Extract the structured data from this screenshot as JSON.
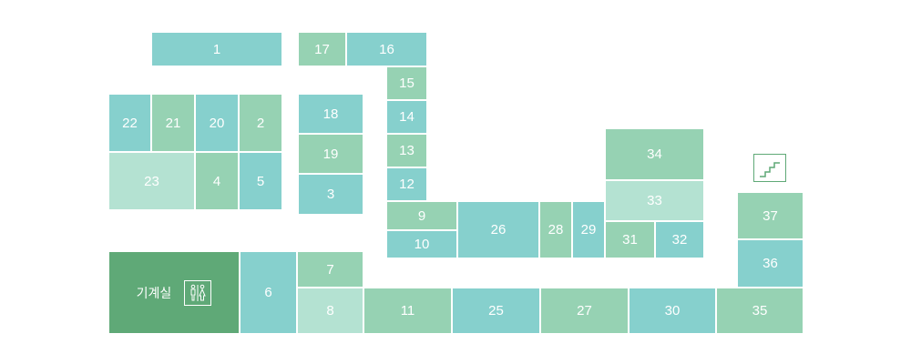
{
  "colors": {
    "teal": "#86d0cd",
    "green": "#96d2b3",
    "light": "#b4e2d2",
    "dark": "#5fa977",
    "label": "#ffffff"
  },
  "rooms": {
    "r1": "1",
    "r2": "2",
    "r3": "3",
    "r4": "4",
    "r5": "5",
    "r6": "6",
    "r7": "7",
    "r8": "8",
    "r9": "9",
    "r10": "10",
    "r11": "11",
    "r12": "12",
    "r13": "13",
    "r14": "14",
    "r15": "15",
    "r16": "16",
    "r17": "17",
    "r18": "18",
    "r19": "19",
    "r20": "20",
    "r21": "21",
    "r22": "22",
    "r23": "23",
    "r25": "25",
    "r26": "26",
    "r27": "27",
    "r28": "28",
    "r29": "29",
    "r30": "30",
    "r31": "31",
    "r32": "32",
    "r33": "33",
    "r34": "34",
    "r35": "35",
    "r36": "36",
    "r37": "37"
  },
  "mechanical_room": {
    "label": "기계실",
    "icon": "restroom-icon"
  },
  "stairs": {
    "icon": "stairs-icon"
  }
}
